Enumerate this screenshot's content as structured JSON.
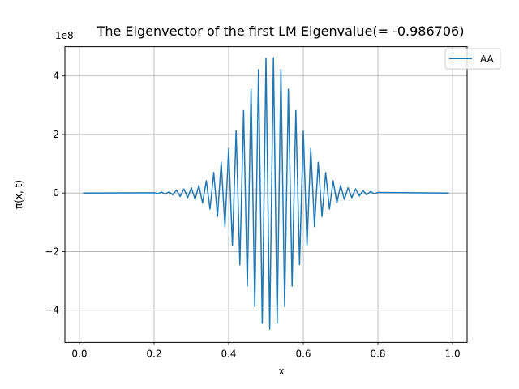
{
  "chart_data": {
    "type": "line",
    "title": "The Eigenvector of the first LM Eigenvalue(= -0.986706)",
    "xlabel": "x",
    "ylabel": "π(x, t)",
    "y_offset_text": "1e8",
    "xlim": [
      -0.039,
      1.039
    ],
    "ylim": [
      -5.1,
      5.0
    ],
    "y_scale_factor": 100000000,
    "grid": true,
    "legend_position": "top-right",
    "x_ticks": [
      {
        "value": 0.0,
        "label": "0.0"
      },
      {
        "value": 0.2,
        "label": "0.2"
      },
      {
        "value": 0.4,
        "label": "0.4"
      },
      {
        "value": 0.6,
        "label": "0.6"
      },
      {
        "value": 0.8,
        "label": "0.8"
      },
      {
        "value": 1.0,
        "label": "1.0"
      }
    ],
    "y_ticks": [
      {
        "value": -4,
        "label": "−4"
      },
      {
        "value": -2,
        "label": "−2"
      },
      {
        "value": 0,
        "label": "0"
      },
      {
        "value": 2,
        "label": "2"
      },
      {
        "value": 4,
        "label": "4"
      }
    ],
    "series": [
      {
        "name": "AA",
        "color": "#1f77b4",
        "x": [
          0.01,
          0.2,
          0.21,
          0.22,
          0.23,
          0.24,
          0.25,
          0.26,
          0.27,
          0.28,
          0.29,
          0.3,
          0.31,
          0.32,
          0.33,
          0.34,
          0.35,
          0.36,
          0.37,
          0.38,
          0.39,
          0.4,
          0.41,
          0.42,
          0.43,
          0.44,
          0.45,
          0.46,
          0.47,
          0.48,
          0.49,
          0.5,
          0.51,
          0.52,
          0.53,
          0.54,
          0.55,
          0.56,
          0.57,
          0.58,
          0.59,
          0.6,
          0.61,
          0.62,
          0.63,
          0.64,
          0.65,
          0.66,
          0.67,
          0.68,
          0.69,
          0.7,
          0.71,
          0.72,
          0.73,
          0.74,
          0.75,
          0.76,
          0.77,
          0.78,
          0.79,
          0.8,
          0.99
        ],
        "y": [
          0,
          0.01,
          -0.02,
          0.03,
          -0.04,
          0.04,
          -0.06,
          0.1,
          -0.12,
          0.14,
          -0.16,
          0.18,
          -0.22,
          0.26,
          -0.34,
          0.42,
          -0.55,
          0.7,
          -0.8,
          1.05,
          -1.15,
          1.52,
          -1.8,
          2.12,
          -2.45,
          2.82,
          -3.18,
          3.55,
          -3.88,
          4.22,
          -4.45,
          4.6,
          -4.65,
          4.62,
          -4.45,
          4.22,
          -3.88,
          3.55,
          -3.18,
          2.82,
          -2.45,
          2.12,
          -1.8,
          1.52,
          -1.15,
          1.05,
          -0.8,
          0.7,
          -0.55,
          0.42,
          -0.34,
          0.26,
          -0.22,
          0.18,
          -0.16,
          0.14,
          -0.1,
          0.08,
          -0.06,
          0.05,
          -0.03,
          0.02,
          0
        ]
      }
    ]
  }
}
